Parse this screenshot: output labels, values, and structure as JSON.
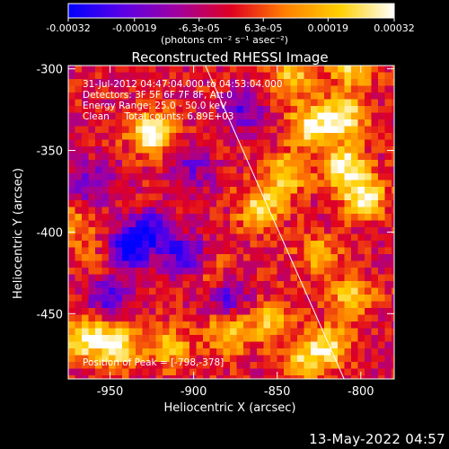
{
  "chart_data": {
    "type": "heatmap",
    "title": "Reconstructed RHESSI Image",
    "xlabel": "Heliocentric X (arcsec)",
    "ylabel": "Heliocentric Y (arcsec)",
    "xlim": [
      -975,
      -780
    ],
    "ylim": [
      -490,
      -298
    ],
    "xticks": [
      "-950",
      "-900",
      "-850",
      "-800"
    ],
    "xtick_values": [
      -950,
      -900,
      -850,
      -800
    ],
    "yticks": [
      "-300",
      "-350",
      "-400",
      "-450"
    ],
    "ytick_values": [
      -300,
      -350,
      -400,
      -450
    ],
    "colorbar": {
      "range": [
        -0.00032,
        0.00032
      ],
      "tick_labels": [
        "-0.00032",
        "-0.00019",
        "-6.3e-05",
        "6.3e-05",
        "0.00019",
        "0.00032"
      ],
      "tick_values": [
        -0.00032,
        -0.00019,
        -6.3e-05,
        6.3e-05,
        0.00019,
        0.00032
      ],
      "unit_label": "(photons cm⁻² s⁻¹ asec⁻²)",
      "colormap": [
        "#0000ff",
        "#5a00e6",
        "#a000a0",
        "#e00020",
        "#ff8000",
        "#ffd000",
        "#ffffff"
      ]
    },
    "annotations": [
      "31-Jul-2012 04:47:04.000 to 04:53:04.000",
      "Detectors: 3F 5F 6F 7F 8F, Att 0",
      "Energy Range: 25.0 - 50.0 keV",
      "Clean     Total counts: 6.89E+03"
    ],
    "peak_label": "Position of Peak = [-798,-378]",
    "limb_line": {
      "x": [
        -893,
        -810
      ],
      "y": [
        -298,
        -490
      ]
    },
    "hotspots": [
      {
        "x": -925,
        "y": -340,
        "value": 0.00032
      },
      {
        "x": -965,
        "y": -465,
        "value": 0.0003
      },
      {
        "x": -945,
        "y": -470,
        "value": 0.00028
      },
      {
        "x": -915,
        "y": -470,
        "value": 0.0002
      },
      {
        "x": -880,
        "y": -462,
        "value": 0.00024
      },
      {
        "x": -855,
        "y": -455,
        "value": 0.0002
      },
      {
        "x": -845,
        "y": -365,
        "value": 0.00025
      },
      {
        "x": -860,
        "y": -385,
        "value": 0.00026
      },
      {
        "x": -830,
        "y": -335,
        "value": 0.0003
      },
      {
        "x": -810,
        "y": -330,
        "value": 0.0003
      },
      {
        "x": -798,
        "y": -378,
        "value": 0.00032
      },
      {
        "x": -810,
        "y": -360,
        "value": 0.0003
      },
      {
        "x": -840,
        "y": -305,
        "value": 0.00022
      },
      {
        "x": -805,
        "y": -300,
        "value": 0.00024
      },
      {
        "x": -825,
        "y": -415,
        "value": 0.00018
      },
      {
        "x": -805,
        "y": -440,
        "value": 0.00022
      },
      {
        "x": -820,
        "y": -470,
        "value": 0.00026
      },
      {
        "x": -835,
        "y": -480,
        "value": 0.0002
      },
      {
        "x": -890,
        "y": -425,
        "value": 0.0001
      },
      {
        "x": -955,
        "y": -415,
        "value": 8e-05
      },
      {
        "x": -970,
        "y": -395,
        "value": 0.00012
      }
    ],
    "cold_regions": [
      {
        "x": -940,
        "y": -410,
        "value": -0.0003
      },
      {
        "x": -925,
        "y": -400,
        "value": -0.00026
      },
      {
        "x": -905,
        "y": -415,
        "value": -0.00024
      },
      {
        "x": -950,
        "y": -440,
        "value": -0.00022
      },
      {
        "x": -960,
        "y": -370,
        "value": -0.00018
      },
      {
        "x": -880,
        "y": -440,
        "value": -0.0002
      },
      {
        "x": -870,
        "y": -325,
        "value": -0.00018
      },
      {
        "x": -900,
        "y": -360,
        "value": -0.00014
      }
    ]
  },
  "footer": {
    "timestamp": "13-May-2022 04:57"
  }
}
